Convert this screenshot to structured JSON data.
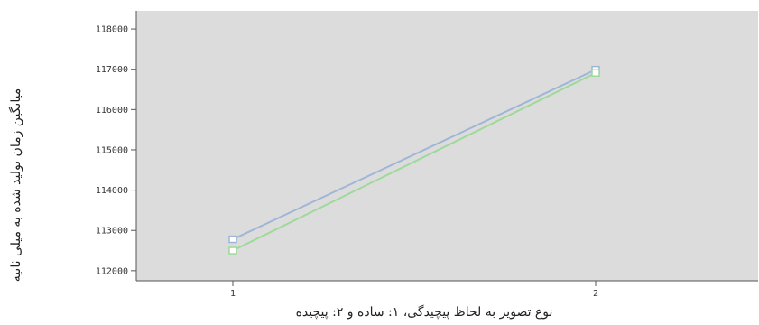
{
  "chart_data": {
    "type": "line",
    "title": "",
    "xlabel": "نوع تصویر به لحاظ پیچیدگی، ۱: ساده و ۲: پیچیده",
    "ylabel": "میانگین زمان تولید شده به میلی ثانیه",
    "categories": [
      "1",
      "2"
    ],
    "xtick_labels": [
      "1",
      "2"
    ],
    "yticks": [
      112000,
      113000,
      114000,
      115000,
      116000,
      117000,
      118000
    ],
    "ytick_labels": [
      "112000",
      "113000",
      "114000",
      "115000",
      "116000",
      "117000",
      "118000"
    ],
    "ylim": [
      111750,
      118450
    ],
    "grid": false,
    "legend": "none",
    "series": [
      {
        "values": [
          112780,
          116990
        ],
        "color": "#9fb6d6"
      },
      {
        "values": [
          112500,
          116910
        ],
        "color": "#9ed99a"
      }
    ],
    "plot_background": "#dcdcdc"
  }
}
